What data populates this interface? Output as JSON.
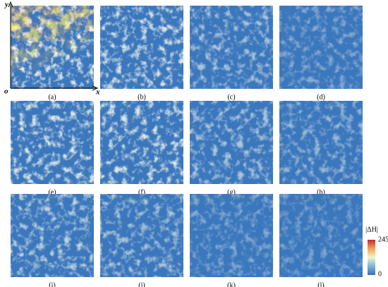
{
  "panels": [
    {
      "label": "(a)"
    },
    {
      "label": "(b)"
    },
    {
      "label": "(c)"
    },
    {
      "label": "(d)"
    },
    {
      "label": "(e)"
    },
    {
      "label": "(f)"
    },
    {
      "label": "(g)"
    },
    {
      "label": "(h)"
    },
    {
      "label": "(i)"
    },
    {
      "label": "(j)"
    },
    {
      "label": "(k)"
    },
    {
      "label": "(l)"
    }
  ],
  "axes": {
    "y": "y",
    "origin": "o",
    "x": "x"
  },
  "colorbar": {
    "title": "|ΔH|",
    "max": 245,
    "min": 0
  }
}
